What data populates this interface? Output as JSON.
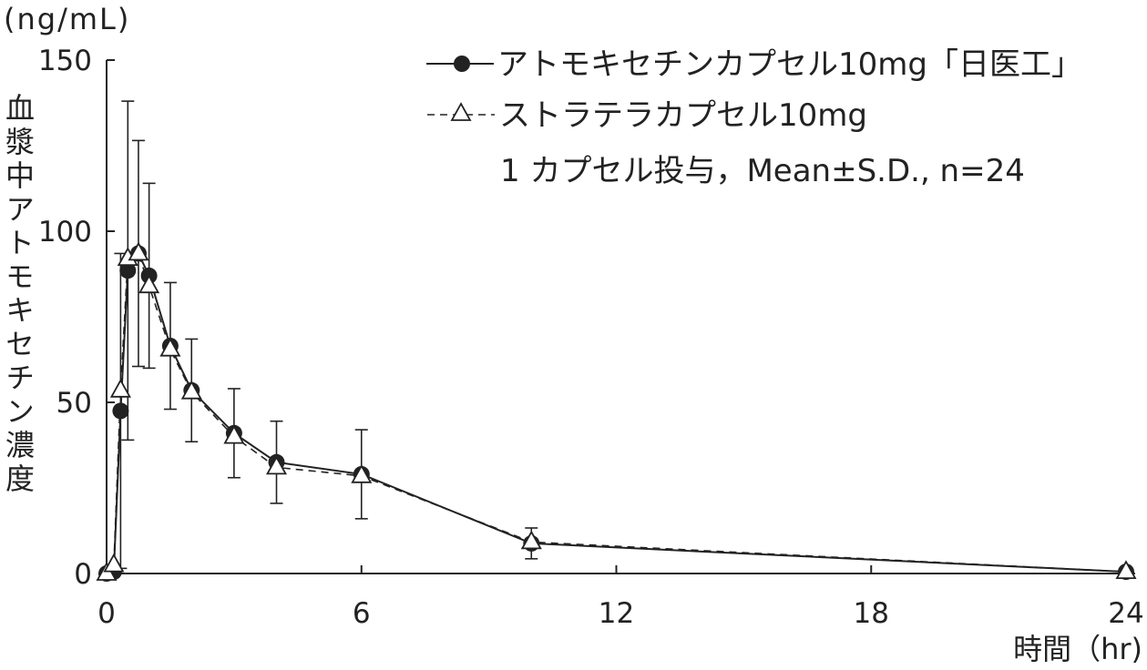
{
  "colors": {
    "ink": "#222222",
    "background": "#ffffff",
    "open_marker_fill": "#ffffff"
  },
  "chart_data": {
    "type": "line",
    "yunit": "(ng/mL)",
    "ylabel": "血漿中アトモキセチン濃度",
    "xlabel": "時間（hr)",
    "xlim": [
      0,
      24
    ],
    "ylim": [
      0,
      150
    ],
    "xticks": [
      0,
      6,
      12,
      18,
      24
    ],
    "yticks": [
      0,
      50,
      100,
      150
    ],
    "grid": false,
    "legend_position": "top-right",
    "x": [
      0,
      0.17,
      0.33,
      0.5,
      0.75,
      1,
      1.5,
      2,
      3,
      4,
      6,
      10,
      24
    ],
    "series": [
      {
        "name": "アトモキセチンカプセル10mg「日医工」",
        "marker": "filled-circle",
        "line_style": "solid",
        "values": [
          0,
          0.5,
          47.5,
          88.5,
          93.5,
          87,
          66.5,
          53.5,
          41,
          32.5,
          29,
          8.8,
          0.5
        ],
        "sd": [
          0,
          0,
          46,
          49.5,
          33,
          27,
          18.5,
          15,
          13,
          12,
          13,
          4.5,
          0
        ]
      },
      {
        "name": "ストラテラカプセル10mg",
        "marker": "open-triangle",
        "line_style": "dashed",
        "values": [
          0,
          2.5,
          53.5,
          92,
          93.5,
          84,
          65.5,
          53,
          40,
          31,
          28.5,
          9.2,
          0.5
        ]
      }
    ],
    "annotation": "1 カプセル投与，Mean±S.D., n=24"
  }
}
